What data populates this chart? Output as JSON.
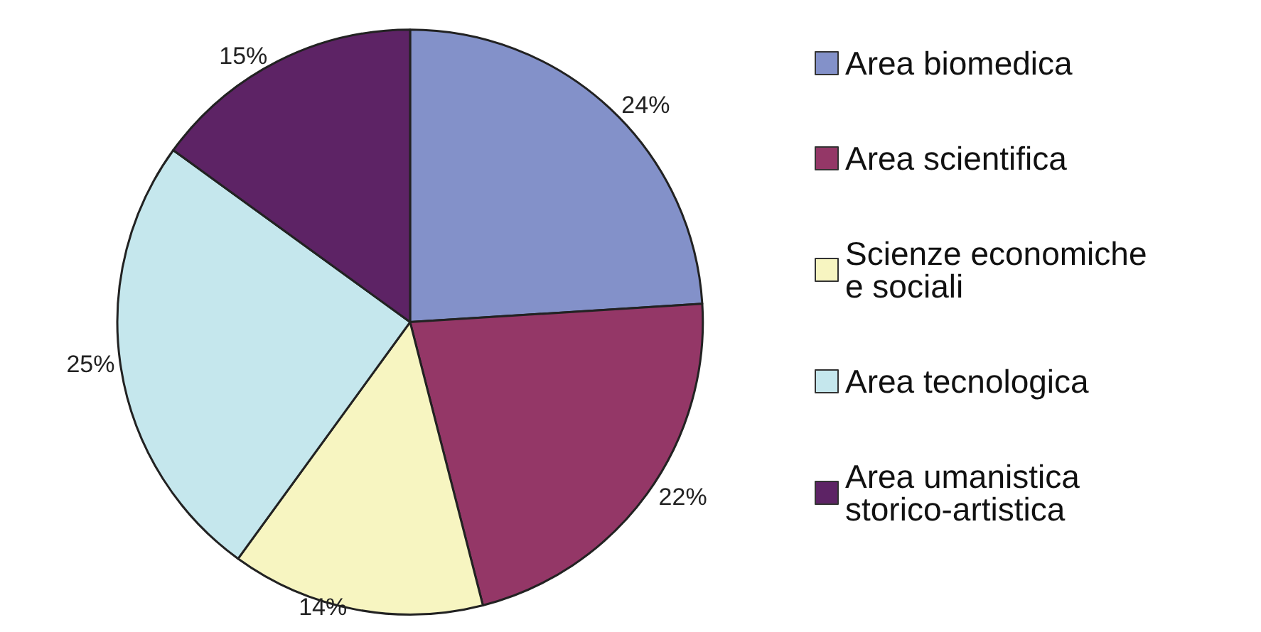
{
  "chart_data": {
    "type": "pie",
    "categories": [
      "Area biomedica",
      "Area scientifica",
      "Scienze economiche e sociali",
      "Area tecnologica",
      "Area umanistica storico-artistica"
    ],
    "values": [
      24,
      22,
      14,
      25,
      15
    ],
    "colors": [
      "#8391c9",
      "#943767",
      "#f7f5c1",
      "#c5e7ed",
      "#5d2365"
    ],
    "value_labels": [
      "24%",
      "22%",
      "14%",
      "25%",
      "15%"
    ],
    "legend": "right"
  }
}
